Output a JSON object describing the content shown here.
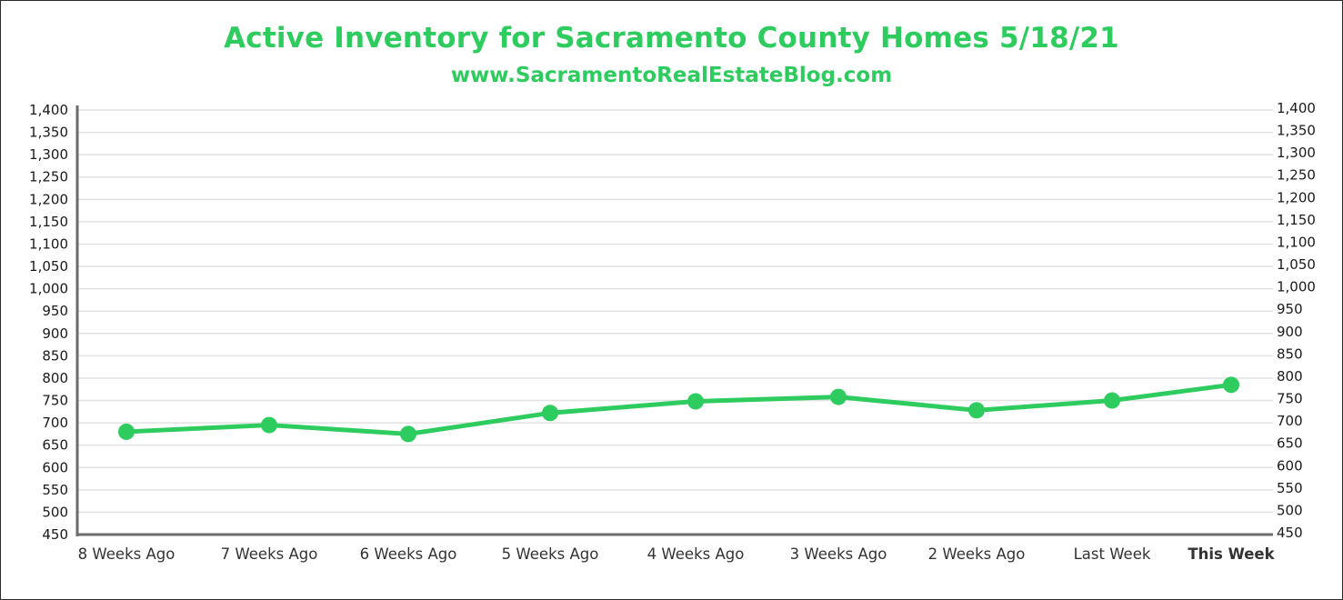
{
  "chart_data": {
    "type": "line",
    "title": "Active Inventory for Sacramento County Homes 5/18/21",
    "subtitle": "www.SacramentoRealEstateBlog.com",
    "xlabel": "",
    "ylabel": "",
    "categories": [
      "8 Weeks Ago",
      "7 Weeks Ago",
      "6 Weeks Ago",
      "5 Weeks Ago",
      "4 Weeks Ago",
      "3 Weeks Ago",
      "2 Weeks Ago",
      "Last Week",
      "This Week"
    ],
    "series": [
      {
        "name": "Active Inventory",
        "values": [
          680,
          695,
          675,
          722,
          748,
          758,
          728,
          750,
          785
        ]
      }
    ],
    "ylim": [
      450,
      1400
    ],
    "yticks": [
      "450",
      "500",
      "550",
      "600",
      "650",
      "700",
      "750",
      "800",
      "850",
      "900",
      "950",
      "1,000",
      "1,050",
      "1,100",
      "1,150",
      "1,200",
      "1,250",
      "1,300",
      "1,350",
      "1,400"
    ],
    "secondary_axis": true,
    "grid": true,
    "highlight_category": "This Week"
  },
  "colors": {
    "accent": "#2ecc5e",
    "grid": "#e2e2e2",
    "axis": "#6b6b6b",
    "text": "#1a1a1a"
  }
}
